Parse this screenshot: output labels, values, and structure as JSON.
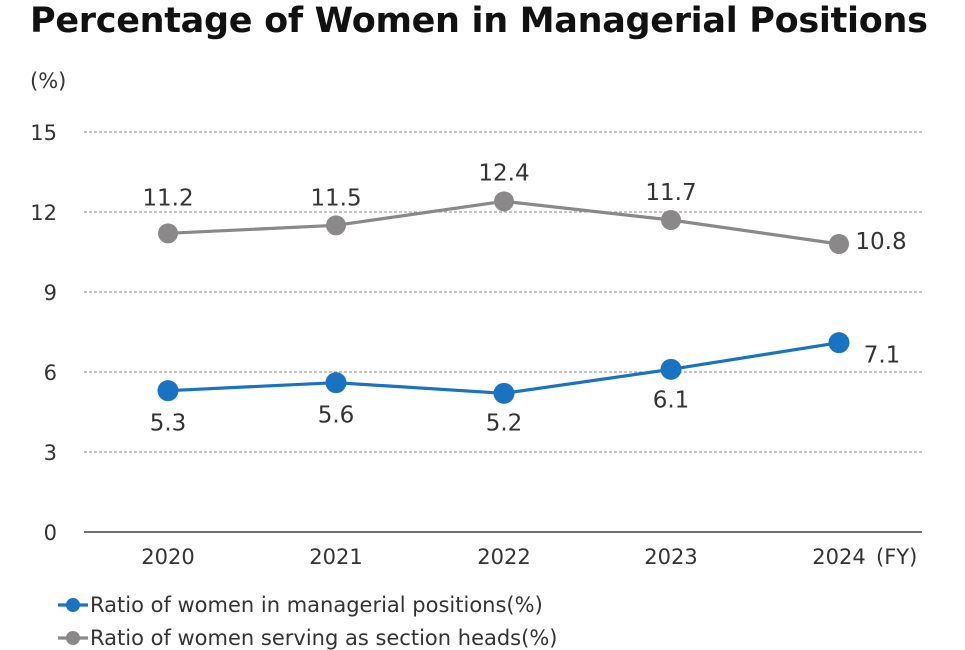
{
  "chart_data": {
    "type": "line",
    "title": "Percentage of Women in Managerial Positions",
    "y_unit_label": "(%)",
    "x_unit_label": "(FY)",
    "categories": [
      "2020",
      "2021",
      "2022",
      "2023",
      "2024"
    ],
    "ylim": [
      0,
      15
    ],
    "yticks": [
      "0",
      "3",
      "6",
      "9",
      "12",
      "15"
    ],
    "grid": true,
    "legend_position": "bottom-left",
    "series": [
      {
        "name": "Ratio of women in managerial positions(%)",
        "values": [
          5.3,
          5.6,
          5.2,
          6.1,
          7.1
        ],
        "labels": [
          "5.3",
          "5.6",
          "5.2",
          "6.1",
          "7.1"
        ],
        "color": "#1a73c1"
      },
      {
        "name": "Ratio of women serving as section heads(%)",
        "values": [
          11.2,
          11.5,
          12.4,
          11.7,
          10.8
        ],
        "labels": [
          "11.2",
          "11.5",
          "12.4",
          "11.7",
          "10.8"
        ],
        "color": "#8a8889"
      }
    ]
  }
}
